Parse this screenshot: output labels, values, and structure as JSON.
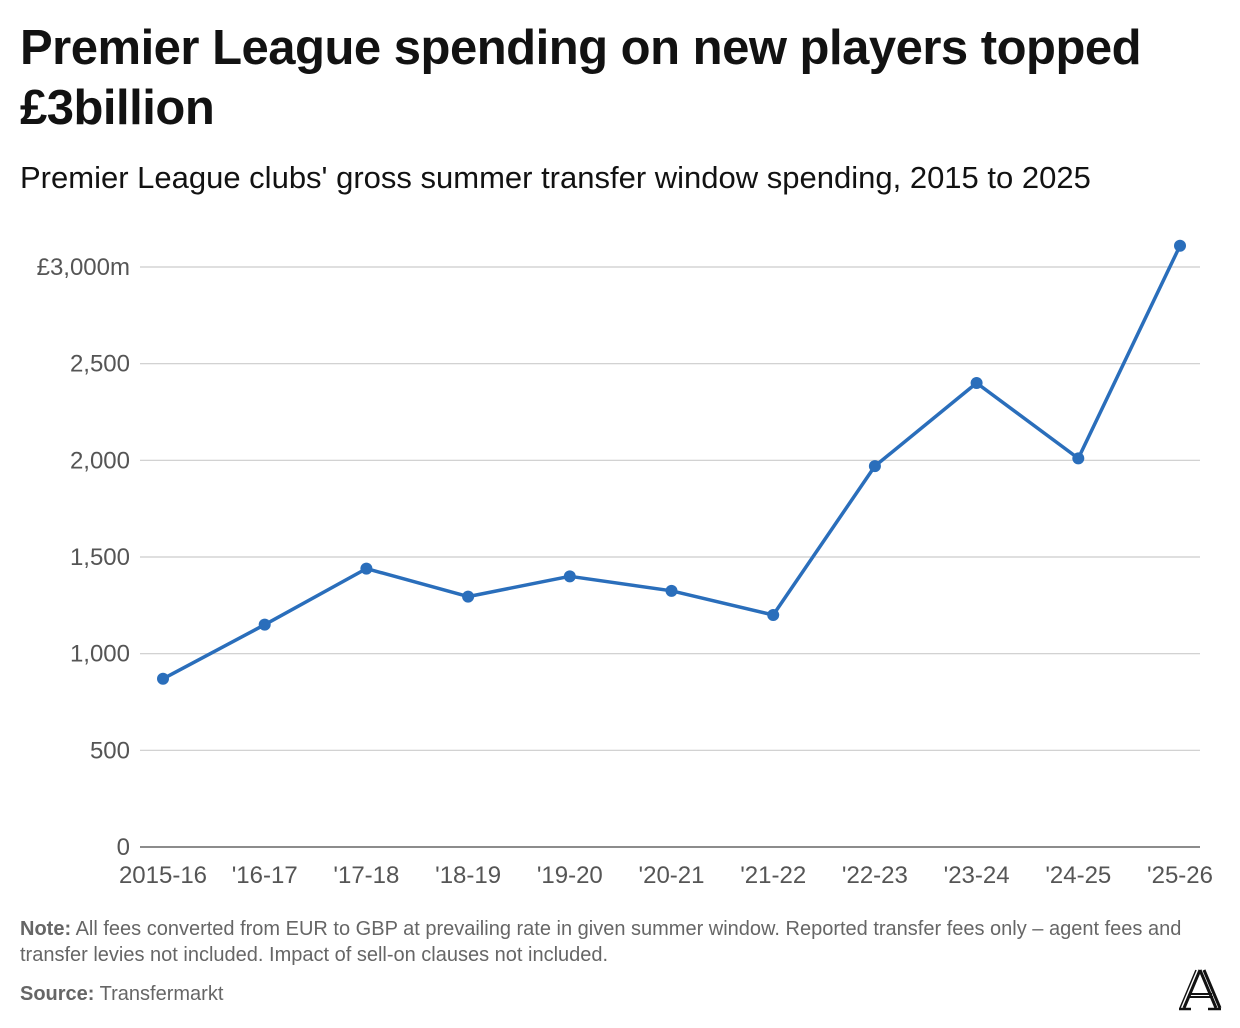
{
  "title": "Premier League spending on new players topped £3billion",
  "subtitle": "Premier League clubs' gross summer transfer window spending, 2015 to 2025",
  "note_label": "Note:",
  "note_text": "All fees converted from EUR to GBP at prevailing rate in given summer window. Reported transfer fees only – agent fees and transfer levies not included. Impact of sell-on clauses not included.",
  "source_label": "Source:",
  "source_text": "Transfermarkt",
  "logo_icon": "the-athletic-logo-icon",
  "chart_data": {
    "type": "line",
    "categories": [
      "2015-16",
      "'16-17",
      "'17-18",
      "'18-19",
      "'19-20",
      "'20-21",
      "'21-22",
      "'22-23",
      "'23-24",
      "'24-25",
      "'25-26"
    ],
    "series": [
      {
        "values": [
          870,
          1150,
          1440,
          1295,
          1400,
          1325,
          1200,
          1970,
          2400,
          2010,
          3110
        ]
      }
    ],
    "y_ticks": [
      {
        "value": 0,
        "label": "0"
      },
      {
        "value": 500,
        "label": "500"
      },
      {
        "value": 1000,
        "label": "1,000"
      },
      {
        "value": 1500,
        "label": "1,500"
      },
      {
        "value": 2000,
        "label": "2,000"
      },
      {
        "value": 2500,
        "label": "2,500"
      },
      {
        "value": 3000,
        "label": "£3,000m"
      }
    ],
    "ylim": [
      0,
      3110
    ],
    "grid": true,
    "line_color": "#2a6ebb",
    "grid_color": "#cccccc",
    "baseline_color": "#666666"
  }
}
